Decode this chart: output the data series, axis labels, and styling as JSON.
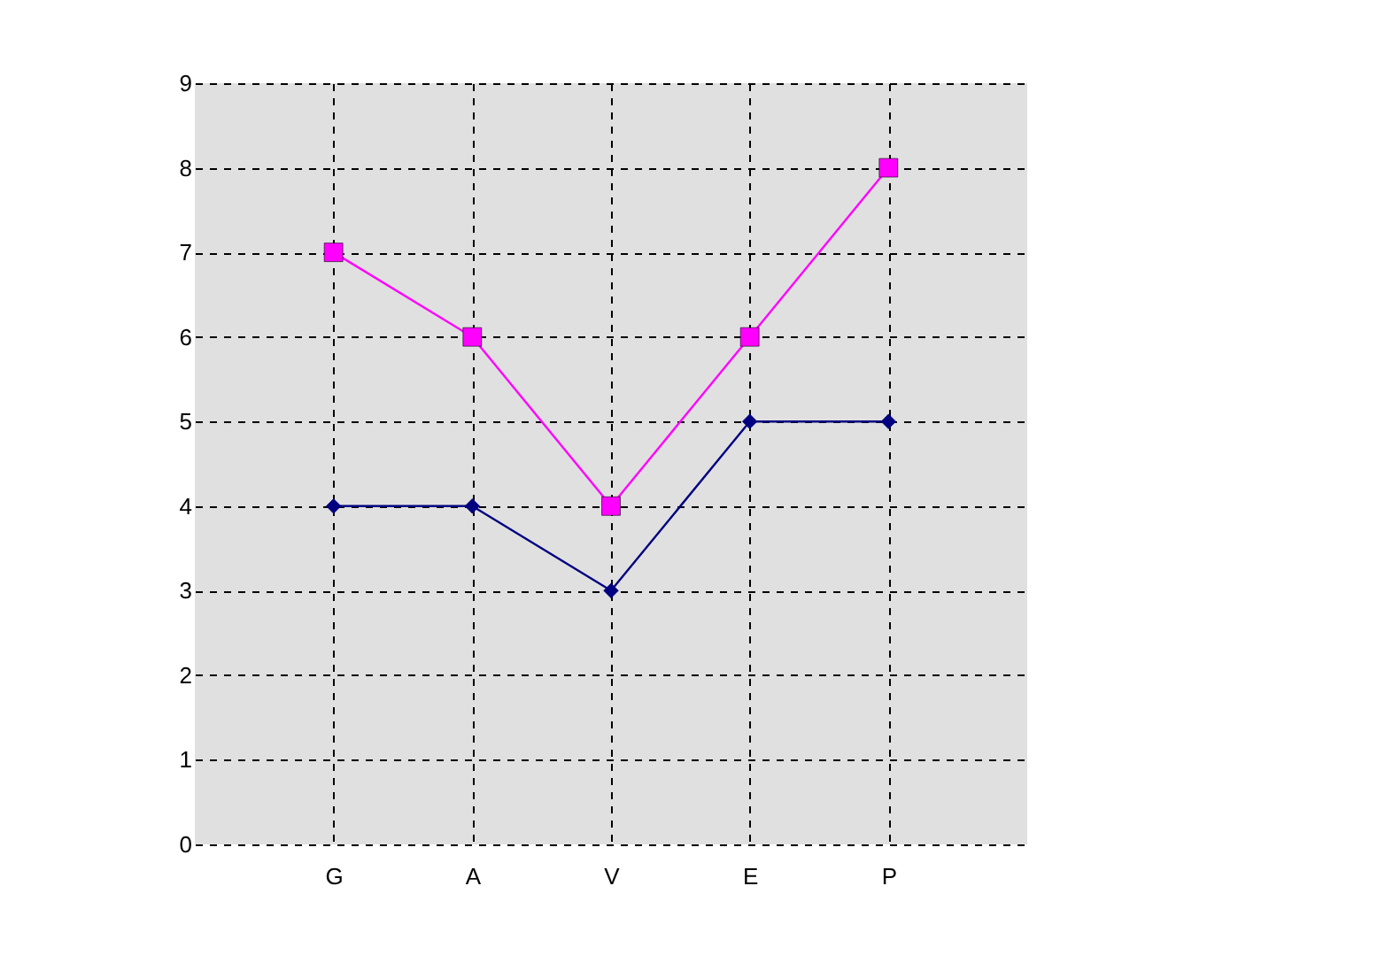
{
  "chart_data": {
    "type": "line",
    "categories": [
      "G",
      "A",
      "V",
      "E",
      "P"
    ],
    "series": [
      {
        "color": "#000080",
        "marker": "diamond",
        "values": [
          4,
          4,
          3,
          5,
          5
        ]
      },
      {
        "color": "#ff00ff",
        "marker": "square",
        "values": [
          7,
          6,
          4,
          6,
          8
        ]
      }
    ],
    "ylim": [
      0,
      9
    ],
    "yticks": [
      0,
      1,
      2,
      3,
      4,
      5,
      6,
      7,
      8,
      9
    ],
    "grid": true,
    "line_style": "solid"
  }
}
